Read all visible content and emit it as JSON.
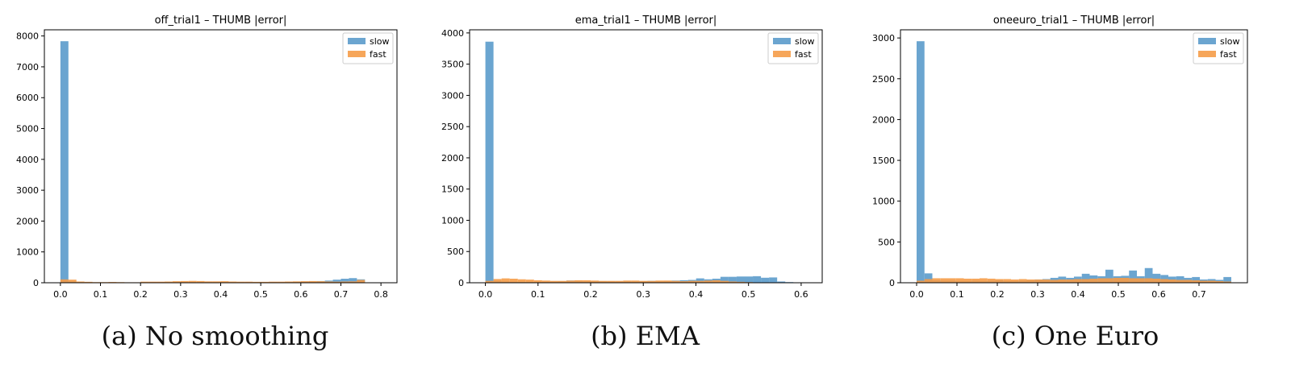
{
  "figure": {
    "legend_labels": [
      "slow",
      "fast"
    ],
    "colors": {
      "slow": "#5b9bcb",
      "fast": "#f59c48",
      "axis": "#000000"
    }
  },
  "chart_data": [
    {
      "type": "bar",
      "title": "off_trial1 – THUMB |error|",
      "caption": "(a) No smoothing",
      "xlabel": "",
      "ylabel": "",
      "xlim": [
        -0.04,
        0.84
      ],
      "ylim": [
        0,
        8200
      ],
      "xticks": [
        0.0,
        0.1,
        0.2,
        0.3,
        0.4,
        0.5,
        0.6,
        0.7,
        0.8
      ],
      "xtick_labels": [
        "0.0",
        "0.1",
        "0.2",
        "0.3",
        "0.4",
        "0.5",
        "0.6",
        "0.7",
        "0.8"
      ],
      "yticks": [
        0,
        1000,
        2000,
        3000,
        4000,
        5000,
        6000,
        7000,
        8000
      ],
      "ytick_labels": [
        "0",
        "1000",
        "2000",
        "3000",
        "4000",
        "5000",
        "6000",
        "7000",
        "8000"
      ],
      "legend_position": "upper right",
      "grid": false,
      "bin_width": 0.02,
      "series": [
        {
          "name": "slow",
          "bin_start": 0.0,
          "values": [
            7830,
            40,
            10,
            8,
            8,
            6,
            6,
            6,
            10,
            12,
            14,
            15,
            15,
            12,
            12,
            10,
            10,
            12,
            10,
            10,
            12,
            14,
            14,
            15,
            16,
            16,
            20,
            18,
            22,
            30,
            40,
            45,
            55,
            70,
            100,
            130,
            150,
            110,
            0,
            0
          ]
        },
        {
          "name": "fast",
          "bin_start": 0.0,
          "values": [
            110,
            100,
            40,
            30,
            20,
            20,
            25,
            20,
            15,
            15,
            35,
            35,
            35,
            40,
            50,
            55,
            60,
            55,
            45,
            45,
            50,
            40,
            35,
            35,
            30,
            30,
            35,
            35,
            40,
            45,
            50,
            55,
            50,
            40,
            35,
            40,
            45,
            90,
            0,
            0
          ]
        }
      ]
    },
    {
      "type": "bar",
      "title": "ema_trial1 – THUMB |error|",
      "caption": "(b) EMA",
      "xlabel": "",
      "ylabel": "",
      "xlim": [
        -0.03,
        0.64
      ],
      "ylim": [
        0,
        4050
      ],
      "xticks": [
        0.0,
        0.1,
        0.2,
        0.3,
        0.4,
        0.5,
        0.6
      ],
      "xtick_labels": [
        "0.0",
        "0.1",
        "0.2",
        "0.3",
        "0.4",
        "0.5",
        "0.6"
      ],
      "yticks": [
        0,
        500,
        1000,
        1500,
        2000,
        2500,
        3000,
        3500,
        4000
      ],
      "ytick_labels": [
        "0",
        "500",
        "1000",
        "1500",
        "2000",
        "2500",
        "3000",
        "3500",
        "4000"
      ],
      "legend_position": "upper right",
      "grid": false,
      "bin_width": 0.0154,
      "series": [
        {
          "name": "slow",
          "bin_start": 0.0,
          "values": [
            3860,
            30,
            20,
            15,
            12,
            12,
            12,
            15,
            20,
            25,
            35,
            30,
            25,
            25,
            25,
            22,
            20,
            22,
            22,
            25,
            30,
            25,
            30,
            35,
            40,
            45,
            70,
            55,
            65,
            95,
            95,
            100,
            100,
            105,
            80,
            85,
            20,
            10,
            5,
            2
          ]
        },
        {
          "name": "fast",
          "bin_start": 0.0,
          "values": [
            30,
            60,
            70,
            65,
            55,
            50,
            40,
            35,
            30,
            30,
            35,
            40,
            40,
            35,
            30,
            30,
            30,
            35,
            35,
            30,
            30,
            35,
            35,
            30,
            25,
            30,
            30,
            35,
            40,
            30,
            20,
            15,
            10,
            5,
            0,
            0,
            0,
            0,
            0,
            0
          ]
        }
      ]
    },
    {
      "type": "bar",
      "title": "oneeuro_trial1 – THUMB |error|",
      "caption": "(c) One Euro",
      "xlabel": "",
      "ylabel": "",
      "xlim": [
        -0.04,
        0.82
      ],
      "ylim": [
        0,
        3100
      ],
      "xticks": [
        0.0,
        0.1,
        0.2,
        0.3,
        0.4,
        0.5,
        0.6,
        0.7
      ],
      "xtick_labels": [
        "0.0",
        "0.1",
        "0.2",
        "0.3",
        "0.4",
        "0.5",
        "0.6",
        "0.7"
      ],
      "yticks": [
        0,
        500,
        1000,
        1500,
        2000,
        2500,
        3000
      ],
      "ytick_labels": [
        "0",
        "500",
        "1000",
        "1500",
        "2000",
        "2500",
        "3000"
      ],
      "legend_position": "upper right",
      "grid": false,
      "bin_width": 0.0195,
      "series": [
        {
          "name": "slow",
          "bin_start": 0.0,
          "values": [
            2960,
            115,
            30,
            25,
            25,
            20,
            20,
            25,
            20,
            25,
            30,
            20,
            20,
            25,
            30,
            40,
            45,
            60,
            75,
            60,
            75,
            110,
            90,
            80,
            160,
            80,
            85,
            150,
            80,
            180,
            110,
            95,
            75,
            80,
            60,
            70,
            40,
            45,
            35,
            70
          ]
        },
        {
          "name": "fast",
          "bin_start": 0.0,
          "values": [
            25,
            45,
            55,
            55,
            55,
            55,
            50,
            50,
            55,
            50,
            45,
            45,
            40,
            45,
            40,
            40,
            40,
            35,
            40,
            40,
            45,
            45,
            50,
            55,
            55,
            60,
            60,
            55,
            55,
            55,
            50,
            45,
            40,
            35,
            35,
            30,
            25,
            25,
            20,
            15
          ]
        }
      ]
    }
  ]
}
